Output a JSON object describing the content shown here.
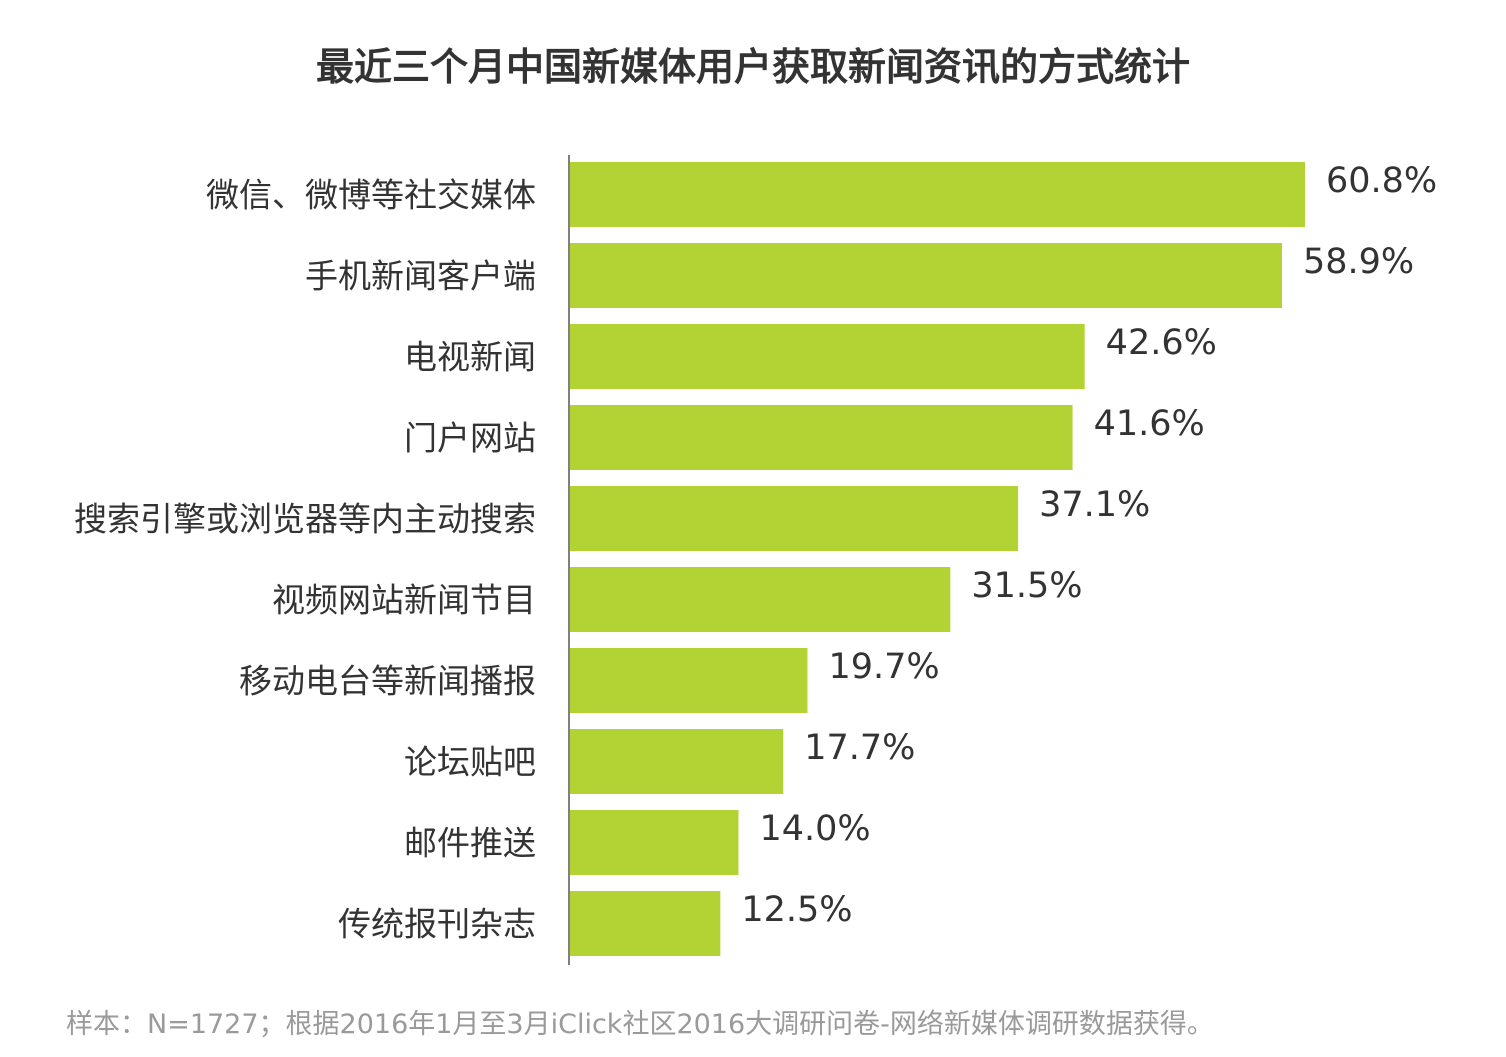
{
  "chart_data": {
    "type": "bar",
    "orientation": "horizontal",
    "title": "最近三个月中国新媒体用户获取新闻资讯的方式统计",
    "categories": [
      "微信、微博等社交媒体",
      "手机新闻客户端",
      "电视新闻",
      "门户网站",
      "搜索引擎或浏览器等内主动搜索",
      "视频网站新闻节目",
      "移动电台等新闻播报",
      "论坛贴吧",
      "邮件推送",
      "传统报刊杂志"
    ],
    "values": [
      60.8,
      58.9,
      42.6,
      41.6,
      37.1,
      31.5,
      19.7,
      17.7,
      14.0,
      12.5
    ],
    "value_labels": [
      "60.8%",
      "58.9%",
      "42.6%",
      "41.6%",
      "37.1%",
      "31.5%",
      "19.7%",
      "17.7%",
      "14.0%",
      "12.5%"
    ],
    "unit": "%",
    "xlim": [
      0,
      70
    ],
    "grid": false,
    "legend": "none",
    "bar_color": "#b3d335",
    "axis_color": "#808080"
  },
  "footnote": "样本：N=1727；根据2016年1月至3月iClick社区2016大调研问卷-网络新媒体调研数据获得。"
}
